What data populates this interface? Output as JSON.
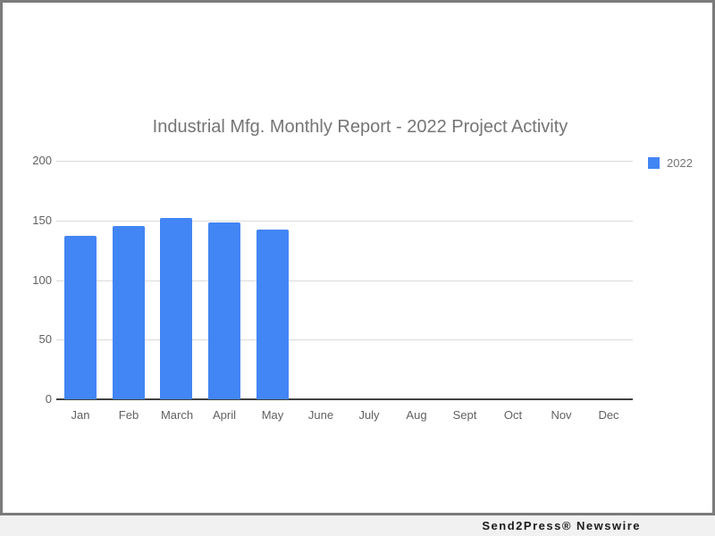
{
  "chart_data": {
    "type": "bar",
    "title": "Industrial Mfg. Monthly Report - 2022 Project Activity",
    "categories": [
      "Jan",
      "Feb",
      "March",
      "April",
      "May",
      "June",
      "July",
      "Aug",
      "Sept",
      "Oct",
      "Nov",
      "Dec"
    ],
    "series": [
      {
        "name": "2022",
        "values": [
          137,
          145,
          152,
          148,
          142,
          null,
          null,
          null,
          null,
          null,
          null,
          null
        ]
      }
    ],
    "xlabel": "",
    "ylabel": "",
    "y_ticks": [
      0,
      50,
      100,
      150,
      200
    ],
    "ylim": [
      0,
      200
    ],
    "grid": true,
    "legend_position": "top-right",
    "bar_color": "#4285f4"
  },
  "legend": {
    "label": "2022",
    "swatch_color": "#4285f4"
  },
  "footer": {
    "text": "Send2Press® Newswire"
  },
  "colors": {
    "bar": "#4285f4",
    "title_text": "#757575",
    "axis_text": "#616161",
    "gridline": "#dadada",
    "baseline": "#424242",
    "frame_border": "#7b7b7b",
    "footer_bg": "#f1f1f1",
    "footer_text": "#1a1a1a"
  }
}
